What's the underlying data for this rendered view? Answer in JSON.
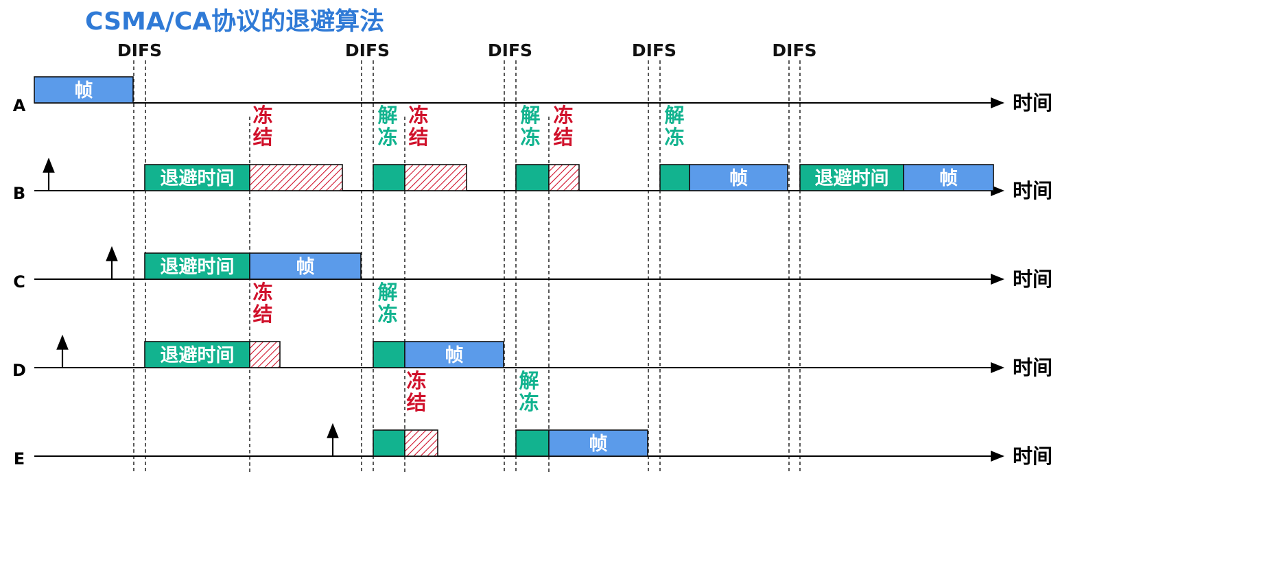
{
  "title": "CSMA/CA协议的退避算法",
  "difs_label": "DIFS",
  "time_label": "时间",
  "colors": {
    "frame": "#5b9bea",
    "backoff": "#12b38f",
    "freeze_text": "#d0112b",
    "unfreeze_text": "#12b38f",
    "hatch": "#d0112b",
    "title": "#2f7ad6"
  },
  "labels": {
    "frame": "帧",
    "backoff": "退避时间",
    "freeze": [
      "冻",
      "结"
    ],
    "unfreeze": [
      "解",
      "冻"
    ]
  },
  "stations": [
    {
      "id": "A",
      "segments": [
        {
          "kind": "frame"
        }
      ],
      "annotations": []
    },
    {
      "id": "B",
      "segments": [
        {
          "kind": "backoff"
        },
        {
          "kind": "frozen"
        },
        {
          "kind": "backoff"
        },
        {
          "kind": "frozen"
        },
        {
          "kind": "backoff"
        },
        {
          "kind": "frozen"
        },
        {
          "kind": "backoff"
        },
        {
          "kind": "frame"
        },
        {
          "kind": "backoff"
        },
        {
          "kind": "frame"
        }
      ],
      "annotations": [
        {
          "kind": "freeze"
        },
        {
          "kind": "unfreeze"
        },
        {
          "kind": "freeze"
        },
        {
          "kind": "unfreeze"
        },
        {
          "kind": "freeze"
        },
        {
          "kind": "unfreeze"
        }
      ]
    },
    {
      "id": "C",
      "segments": [
        {
          "kind": "backoff"
        },
        {
          "kind": "frame"
        }
      ],
      "annotations": []
    },
    {
      "id": "D",
      "segments": [
        {
          "kind": "backoff"
        },
        {
          "kind": "frozen"
        },
        {
          "kind": "backoff"
        },
        {
          "kind": "frame"
        }
      ],
      "annotations": [
        {
          "kind": "freeze"
        },
        {
          "kind": "unfreeze"
        }
      ]
    },
    {
      "id": "E",
      "segments": [
        {
          "kind": "backoff"
        },
        {
          "kind": "frozen"
        },
        {
          "kind": "backoff"
        },
        {
          "kind": "frame"
        }
      ],
      "annotations": [
        {
          "kind": "freeze"
        },
        {
          "kind": "unfreeze"
        }
      ]
    }
  ]
}
